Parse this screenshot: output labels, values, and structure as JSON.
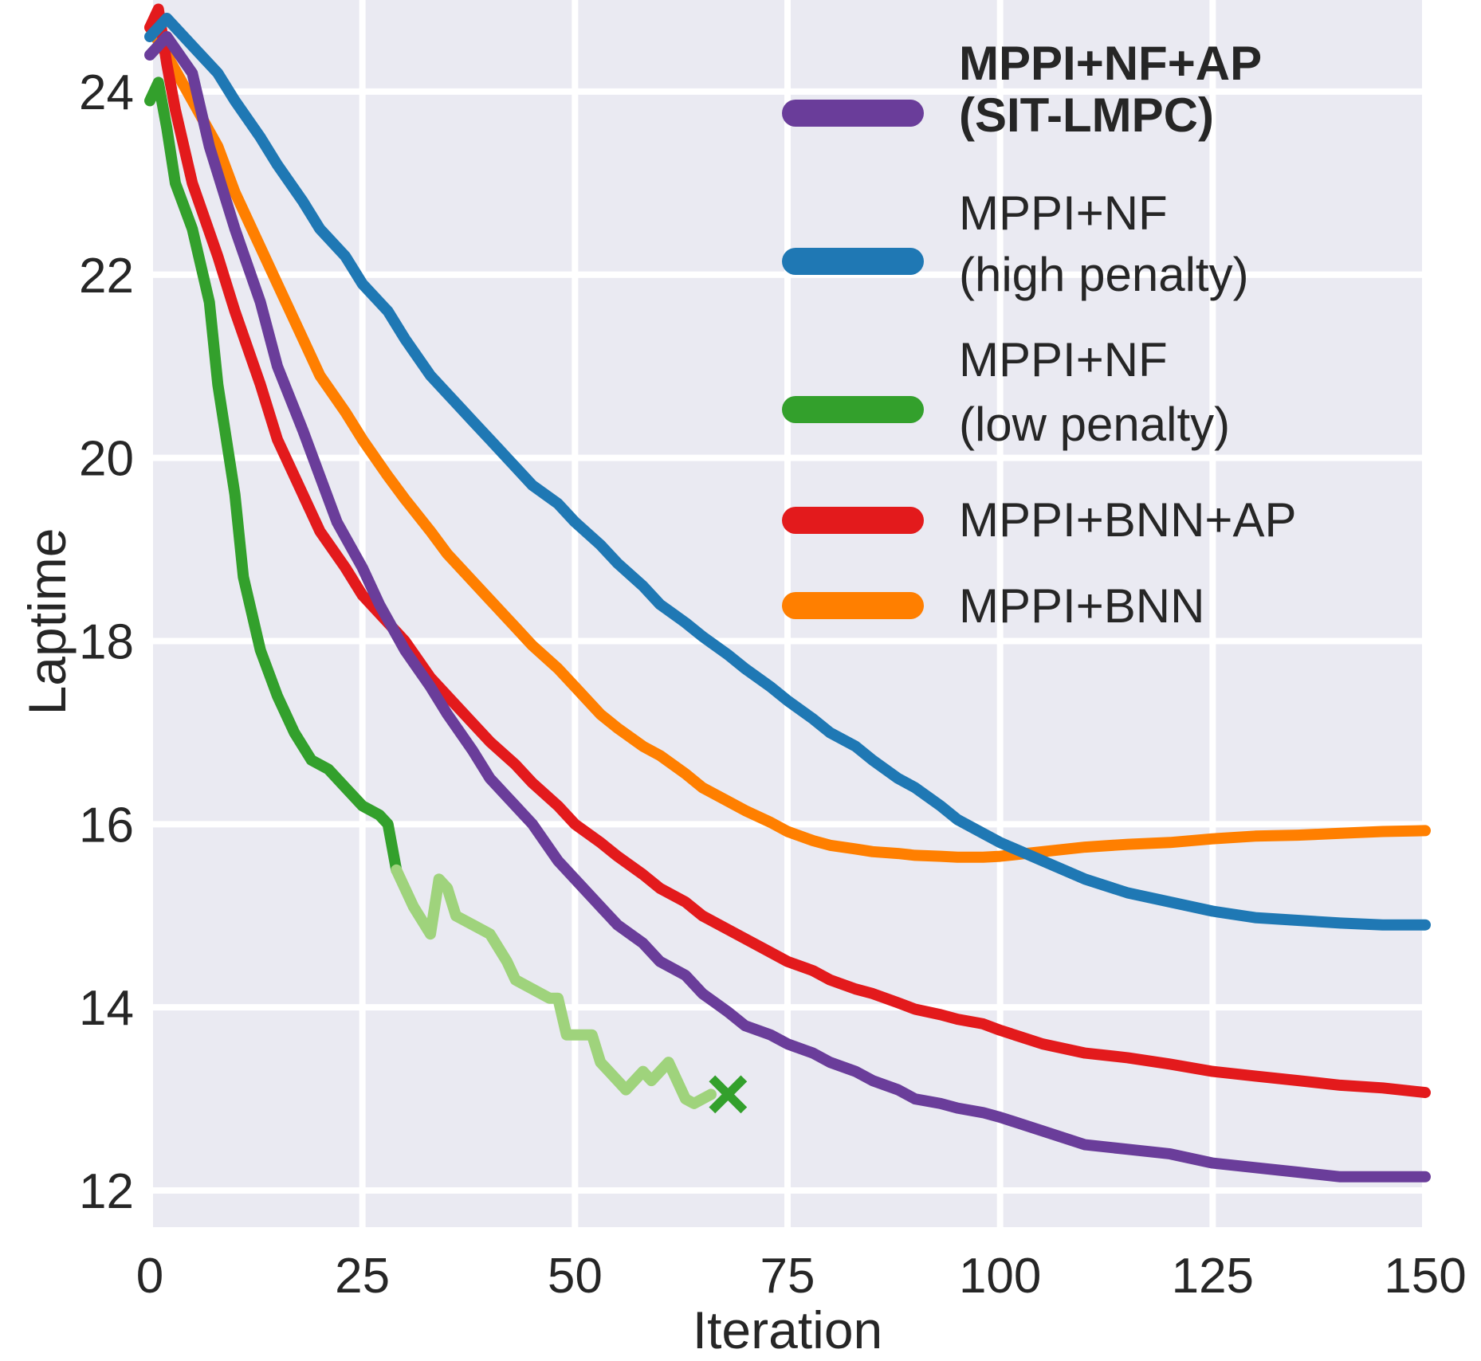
{
  "chart_data": {
    "type": "line",
    "title": "",
    "xlabel": "Iteration",
    "ylabel": "Laptime",
    "xlim": [
      0,
      150
    ],
    "ylim": [
      11.6,
      25
    ],
    "xticks": [
      0,
      25,
      50,
      75,
      100,
      125,
      150
    ],
    "yticks": [
      12,
      14,
      16,
      18,
      20,
      22,
      24
    ],
    "grid": true,
    "legend_position": "top-right",
    "series": [
      {
        "name_lines": [
          "MPPI+NF+AP",
          "(SIT-LMPC)"
        ],
        "bold": true,
        "color": "#6a3d9a",
        "x": [
          0,
          2,
          5,
          7,
          10,
          13,
          15,
          18,
          20,
          22,
          25,
          27,
          30,
          33,
          35,
          38,
          40,
          43,
          45,
          48,
          50,
          53,
          55,
          58,
          60,
          63,
          65,
          68,
          70,
          73,
          75,
          78,
          80,
          83,
          85,
          88,
          90,
          93,
          95,
          98,
          100,
          105,
          110,
          115,
          120,
          125,
          130,
          135,
          140,
          145,
          150
        ],
        "y": [
          24.4,
          24.6,
          24.2,
          23.4,
          22.5,
          21.7,
          21.0,
          20.3,
          19.8,
          19.3,
          18.8,
          18.4,
          17.9,
          17.5,
          17.2,
          16.8,
          16.5,
          16.2,
          16.0,
          15.6,
          15.4,
          15.1,
          14.9,
          14.7,
          14.5,
          14.35,
          14.15,
          13.95,
          13.8,
          13.7,
          13.6,
          13.5,
          13.4,
          13.3,
          13.2,
          13.1,
          13.0,
          12.95,
          12.9,
          12.85,
          12.8,
          12.65,
          12.5,
          12.45,
          12.4,
          12.3,
          12.25,
          12.2,
          12.15,
          12.15,
          12.15
        ]
      },
      {
        "name_lines": [
          "MPPI+NF",
          "(high penalty)"
        ],
        "bold": false,
        "color": "#1f78b4",
        "x": [
          0,
          2,
          5,
          8,
          10,
          13,
          15,
          18,
          20,
          23,
          25,
          28,
          30,
          33,
          35,
          38,
          40,
          43,
          45,
          48,
          50,
          53,
          55,
          58,
          60,
          63,
          65,
          68,
          70,
          73,
          75,
          78,
          80,
          83,
          85,
          88,
          90,
          93,
          95,
          98,
          100,
          105,
          110,
          115,
          120,
          125,
          130,
          135,
          140,
          145,
          150
        ],
        "y": [
          24.6,
          24.8,
          24.5,
          24.2,
          23.9,
          23.5,
          23.2,
          22.8,
          22.5,
          22.2,
          21.9,
          21.6,
          21.3,
          20.9,
          20.7,
          20.4,
          20.2,
          19.9,
          19.7,
          19.5,
          19.3,
          19.05,
          18.85,
          18.6,
          18.4,
          18.2,
          18.05,
          17.85,
          17.7,
          17.5,
          17.35,
          17.15,
          17.0,
          16.85,
          16.7,
          16.5,
          16.4,
          16.2,
          16.05,
          15.9,
          15.8,
          15.6,
          15.4,
          15.25,
          15.15,
          15.05,
          14.98,
          14.95,
          14.92,
          14.9,
          14.9
        ]
      },
      {
        "name_lines": [
          "MPPI+NF",
          "(low penalty)"
        ],
        "bold": false,
        "color": "#33a02c",
        "x": [
          0,
          1,
          2,
          3,
          5,
          7,
          8,
          9,
          10,
          11,
          12,
          13,
          15,
          17,
          19,
          21,
          23,
          25,
          27,
          28,
          29,
          31,
          33,
          34,
          35,
          36,
          38,
          40,
          42,
          43,
          45,
          47,
          48,
          49,
          50,
          52,
          53,
          55,
          56,
          58,
          59,
          61,
          63,
          64,
          65,
          66
        ],
        "y": [
          23.9,
          24.1,
          23.6,
          23.0,
          22.5,
          21.7,
          20.8,
          20.2,
          19.6,
          18.7,
          18.3,
          17.9,
          17.4,
          17.0,
          16.7,
          16.6,
          16.4,
          16.2,
          16.1,
          16.0,
          15.5,
          15.1,
          14.8,
          15.4,
          15.3,
          15.0,
          14.9,
          14.8,
          14.5,
          14.3,
          14.2,
          14.1,
          14.1,
          13.7,
          13.7,
          13.7,
          13.4,
          13.2,
          13.1,
          13.3,
          13.2,
          13.4,
          13.0,
          12.95,
          13.0,
          13.05
        ],
        "faded_from_x": 29,
        "faded_color": "#9fd37c",
        "end_marker": {
          "x": 68,
          "y": 13.05,
          "symbol": "x"
        }
      },
      {
        "name_lines": [
          "MPPI+BNN+AP"
        ],
        "bold": false,
        "color": "#e31a1c",
        "x": [
          0,
          1,
          2,
          3,
          5,
          8,
          10,
          13,
          15,
          18,
          20,
          23,
          25,
          28,
          30,
          33,
          35,
          38,
          40,
          43,
          45,
          48,
          50,
          53,
          55,
          58,
          60,
          63,
          65,
          68,
          70,
          73,
          75,
          78,
          80,
          83,
          85,
          88,
          90,
          93,
          95,
          98,
          100,
          105,
          110,
          115,
          120,
          125,
          130,
          135,
          140,
          145,
          150
        ],
        "y": [
          24.7,
          24.9,
          24.3,
          23.8,
          23.0,
          22.2,
          21.6,
          20.8,
          20.2,
          19.6,
          19.2,
          18.8,
          18.5,
          18.2,
          18.0,
          17.6,
          17.4,
          17.1,
          16.9,
          16.65,
          16.45,
          16.2,
          16.0,
          15.8,
          15.65,
          15.45,
          15.3,
          15.15,
          15.0,
          14.85,
          14.75,
          14.6,
          14.5,
          14.4,
          14.3,
          14.2,
          14.15,
          14.05,
          13.98,
          13.92,
          13.87,
          13.82,
          13.75,
          13.6,
          13.5,
          13.45,
          13.38,
          13.3,
          13.25,
          13.2,
          13.15,
          13.12,
          13.07
        ]
      },
      {
        "name_lines": [
          "MPPI+BNN"
        ],
        "bold": false,
        "color": "#ff7f00",
        "x": [
          0,
          2,
          5,
          8,
          10,
          13,
          15,
          18,
          20,
          23,
          25,
          28,
          30,
          33,
          35,
          38,
          40,
          43,
          45,
          48,
          50,
          53,
          55,
          58,
          60,
          63,
          65,
          68,
          70,
          73,
          75,
          78,
          80,
          83,
          85,
          88,
          90,
          93,
          95,
          98,
          100,
          105,
          110,
          115,
          120,
          125,
          130,
          135,
          140,
          145,
          150
        ],
        "y": [
          24.7,
          24.4,
          23.9,
          23.4,
          22.9,
          22.3,
          21.9,
          21.3,
          20.9,
          20.5,
          20.2,
          19.8,
          19.55,
          19.2,
          18.95,
          18.65,
          18.45,
          18.15,
          17.95,
          17.7,
          17.5,
          17.2,
          17.05,
          16.85,
          16.75,
          16.55,
          16.4,
          16.25,
          16.15,
          16.02,
          15.92,
          15.82,
          15.77,
          15.73,
          15.7,
          15.68,
          15.66,
          15.65,
          15.64,
          15.64,
          15.65,
          15.7,
          15.75,
          15.78,
          15.8,
          15.84,
          15.87,
          15.88,
          15.9,
          15.92,
          15.93
        ]
      }
    ]
  }
}
